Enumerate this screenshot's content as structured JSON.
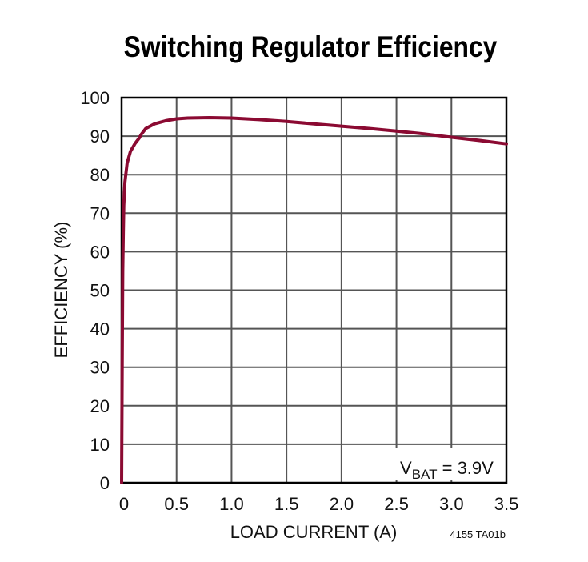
{
  "title": "Switching Regulator Efficiency",
  "x_axis": {
    "label": "LOAD CURRENT (A)",
    "ticks": [
      "0",
      "0.5",
      "1.0",
      "1.5",
      "2.0",
      "2.5",
      "3.0",
      "3.5"
    ]
  },
  "y_axis": {
    "label": "EFFICIENCY (%)",
    "ticks": [
      "0",
      "10",
      "20",
      "30",
      "40",
      "50",
      "60",
      "70",
      "80",
      "90",
      "100"
    ]
  },
  "annotation": {
    "main": "V",
    "sub": "BAT",
    "rest": " = 3.9V"
  },
  "figure_code": "4155 TA01b",
  "colors": {
    "curve": "#8B0A32",
    "grid": "#555555",
    "frame": "#000000"
  },
  "chart_data": {
    "type": "line",
    "title": "Switching Regulator Efficiency",
    "xlabel": "LOAD CURRENT (A)",
    "ylabel": "EFFICIENCY (%)",
    "xlim": [
      0,
      3.5
    ],
    "ylim": [
      0,
      100
    ],
    "grid": true,
    "annotations": [
      "VBAT = 3.9V"
    ],
    "series": [
      {
        "name": "VBAT = 3.9V",
        "x": [
          0.0,
          0.005,
          0.01,
          0.015,
          0.02,
          0.03,
          0.05,
          0.08,
          0.12,
          0.16,
          0.18,
          0.22,
          0.3,
          0.4,
          0.5,
          0.6,
          0.8,
          1.0,
          1.25,
          1.5,
          1.75,
          2.0,
          2.25,
          2.5,
          2.75,
          3.0,
          3.25,
          3.5
        ],
        "y": [
          0,
          30,
          55,
          65,
          72,
          78,
          83,
          86,
          88,
          89.5,
          90.5,
          92,
          93.2,
          94,
          94.5,
          94.7,
          94.8,
          94.7,
          94.3,
          93.8,
          93.2,
          92.6,
          92,
          91.3,
          90.6,
          89.7,
          88.9,
          88
        ]
      }
    ]
  }
}
